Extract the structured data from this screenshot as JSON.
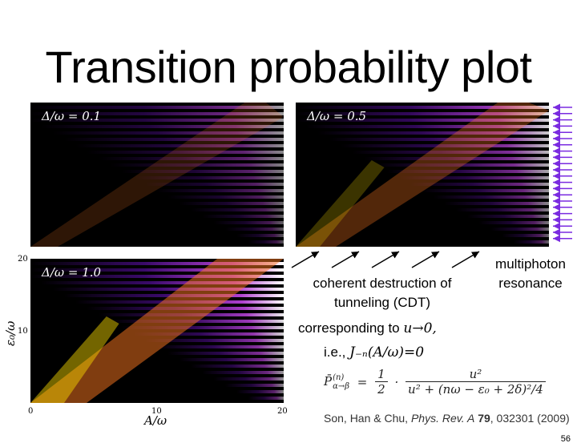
{
  "slide": {
    "title": "Transition probability plot",
    "page_number": "56"
  },
  "plots": {
    "p1": {
      "label": "Δ/ω = 0.1",
      "delta": 0.1
    },
    "p2": {
      "label": "Δ/ω = 0.5",
      "delta": 0.5
    },
    "p3": {
      "label": "Δ/ω = 1.0",
      "delta": 1.0
    }
  },
  "axes": {
    "x_label": "A/ω",
    "y_label": "ε₀/ω",
    "x_ticks": [
      "0",
      "10",
      "20"
    ],
    "y_ticks": [
      "20",
      "10"
    ]
  },
  "annotations": {
    "multiphoton_line1": "multiphoton",
    "multiphoton_line2": "resonance",
    "cdt_line1": "coherent destruction of",
    "cdt_line2": "tunneling (CDT)",
    "corresponding_text": "corresponding to",
    "corresponding_math": "u→0,",
    "ie_text": "i.e.,",
    "ie_math": "J₋ₙ(A/ω)=0"
  },
  "formula": {
    "lhs": "P̄",
    "lhs_sup": "(n)",
    "lhs_sub": "α→β",
    "eq": "=",
    "half_num": "1",
    "half_den": "2",
    "dot": "·",
    "num": "u²",
    "den": "u² + (nω − ε₀ + 2δ)²/4"
  },
  "citation": {
    "authors": "Son, Han & Chu,",
    "journal": "Phys. Rev. A",
    "volume": "79",
    "rest": ", 032301 (2009)"
  },
  "colors": {
    "background": "#000000",
    "arrow": "#7a2be0",
    "low": "#3a0a6a",
    "high": "#ffe000"
  }
}
